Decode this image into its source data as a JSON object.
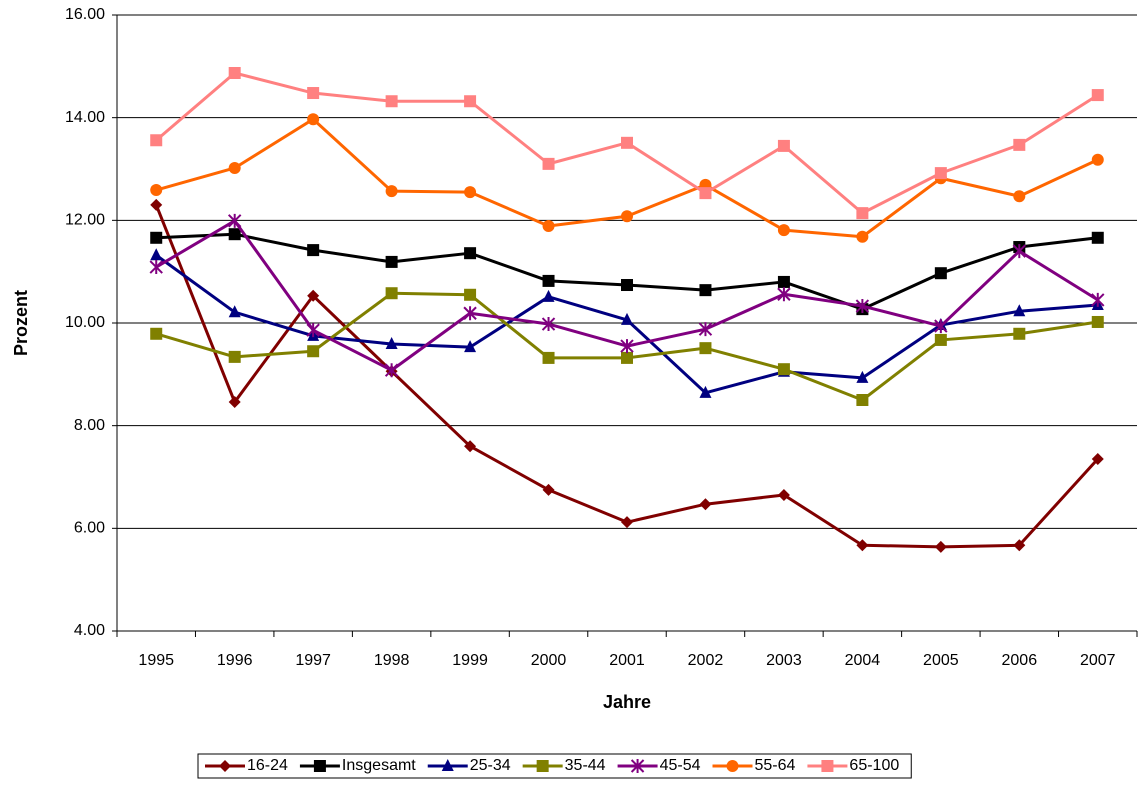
{
  "chart_data": {
    "type": "line",
    "xlabel": "Jahre",
    "ylabel": "Prozent",
    "categories": [
      "1995",
      "1996",
      "1997",
      "1998",
      "1999",
      "2000",
      "2001",
      "2002",
      "2003",
      "2004",
      "2005",
      "2006",
      "2007"
    ],
    "ylim": [
      4,
      16
    ],
    "yticks": [
      {
        "value": 4,
        "label": "4.00"
      },
      {
        "value": 6,
        "label": "6.00"
      },
      {
        "value": 8,
        "label": "8.00"
      },
      {
        "value": 10,
        "label": "10.00"
      },
      {
        "value": 12,
        "label": "12.00"
      },
      {
        "value": 14,
        "label": "14.00"
      },
      {
        "value": 16,
        "label": "16.00"
      }
    ],
    "grid": true,
    "legend": "bottom",
    "series": [
      {
        "name": "16-24",
        "color": "#800000",
        "marker": "diamond",
        "values": [
          12.3,
          8.46,
          10.53,
          9.06,
          7.6,
          6.75,
          6.12,
          6.47,
          6.65,
          5.67,
          5.64,
          5.67,
          7.35
        ]
      },
      {
        "name": "Insgesamt",
        "color": "#000000",
        "marker": "square",
        "values": [
          11.66,
          11.73,
          11.42,
          11.19,
          11.36,
          10.82,
          10.74,
          10.64,
          10.8,
          10.27,
          10.97,
          11.48,
          11.66
        ]
      },
      {
        "name": "25-34",
        "color": "#000080",
        "marker": "triangle",
        "values": [
          11.32,
          10.21,
          9.75,
          9.59,
          9.53,
          10.51,
          10.06,
          8.64,
          9.05,
          8.93,
          9.96,
          10.23,
          10.35
        ]
      },
      {
        "name": "35-44",
        "color": "#808000",
        "marker": "square",
        "values": [
          9.79,
          9.34,
          9.45,
          10.58,
          10.55,
          9.32,
          9.32,
          9.51,
          9.1,
          8.5,
          9.67,
          9.79,
          10.02
        ]
      },
      {
        "name": "45-54",
        "color": "#800080",
        "marker": "star",
        "values": [
          11.09,
          11.99,
          9.86,
          9.08,
          10.19,
          9.98,
          9.55,
          9.88,
          10.56,
          10.33,
          9.94,
          11.4,
          10.45
        ]
      },
      {
        "name": "55-64",
        "color": "#ff6600",
        "marker": "circle",
        "values": [
          12.59,
          13.02,
          13.97,
          12.57,
          12.55,
          11.89,
          12.08,
          12.69,
          11.81,
          11.68,
          12.82,
          12.47,
          13.18
        ]
      },
      {
        "name": "65-100",
        "color": "#ff8080",
        "marker": "square",
        "values": [
          13.56,
          14.87,
          14.48,
          14.32,
          14.32,
          13.1,
          13.51,
          12.53,
          13.45,
          12.14,
          12.92,
          13.47,
          14.44
        ]
      }
    ]
  }
}
